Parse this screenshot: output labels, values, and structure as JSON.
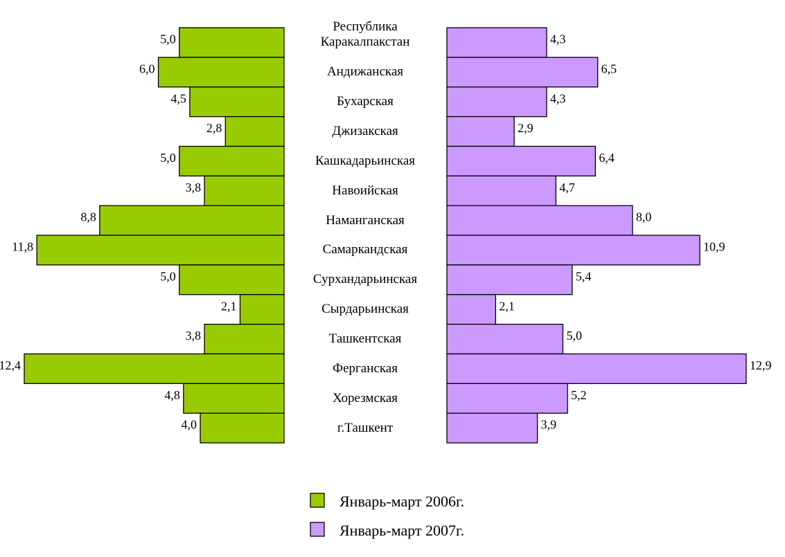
{
  "chart_data": {
    "type": "butterfly_bar",
    "categories": [
      "Республика\nКаракалпакстан",
      "Андижанская",
      "Бухарская",
      "Джизакская",
      "Кашкадарьинская",
      "Навоийская",
      "Наманганская",
      "Самаркандская",
      "Сурхандарьинская",
      "Сырдарьинская",
      "Ташкентская",
      "Ферганская",
      "Хорезмская",
      "г.Ташкент"
    ],
    "series": [
      {
        "name": "Январь-март 2006г.",
        "color": "#99cc00",
        "values": [
          5.0,
          6.0,
          4.5,
          2.8,
          5.0,
          3.8,
          8.8,
          11.8,
          5.0,
          2.1,
          3.8,
          12.4,
          4.8,
          4.0
        ],
        "value_labels": [
          "5,0",
          "6,0",
          "4,5",
          "2,8",
          "5,0",
          "3,8",
          "8,8",
          "11,8",
          "5,0",
          "2,1",
          "3,8",
          "12,4",
          "4,8",
          "4,0"
        ]
      },
      {
        "name": "Январь-март 2007г.",
        "color": "#cc99ff",
        "values": [
          4.3,
          6.5,
          4.3,
          2.9,
          6.4,
          4.7,
          8.0,
          10.9,
          5.4,
          2.1,
          5.0,
          12.9,
          5.2,
          3.9
        ],
        "value_labels": [
          "4,3",
          "6,5",
          "4,3",
          "2,9",
          "6,4",
          "4,7",
          "8,0",
          "10,9",
          "5,4",
          "2,1",
          "5,0",
          "12,9",
          "5,2",
          "3,9"
        ]
      }
    ],
    "legend": "bottom"
  }
}
